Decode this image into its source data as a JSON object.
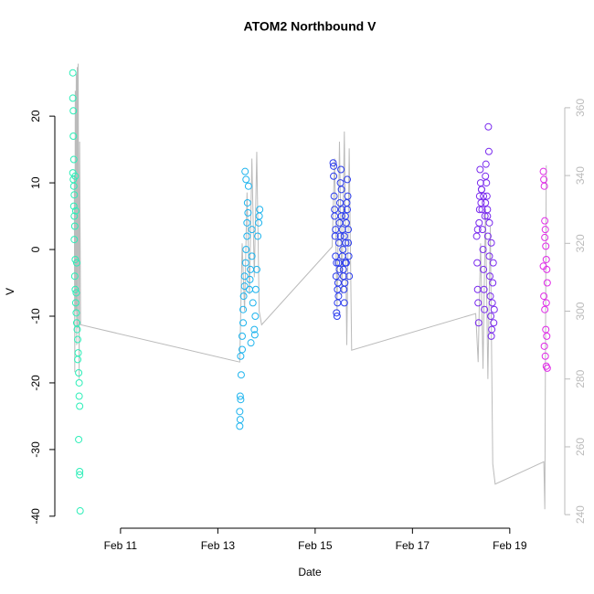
{
  "chart_data": {
    "type": "scatter",
    "title": "ATOM2 Northbound V",
    "x_label": "Date",
    "y_label": "V",
    "xlim": [
      9.65,
      20.13
    ],
    "xticks": [
      {
        "value": 11,
        "label": "Feb 11"
      },
      {
        "value": 13,
        "label": "Feb 13"
      },
      {
        "value": 15,
        "label": "Feb 15"
      },
      {
        "value": 17,
        "label": "Feb 17"
      },
      {
        "value": 19,
        "label": "Feb 19"
      }
    ],
    "ylim": [
      -41.8,
      29.2
    ],
    "yticks": [
      -40,
      -30,
      -20,
      -10,
      0,
      10,
      20
    ],
    "y2lim": [
      236,
      375.6
    ],
    "y2ticks": [
      240,
      260,
      280,
      300,
      320,
      340,
      360
    ],
    "series": [
      {
        "color": "#2CEEB8",
        "x": [
          10.02,
          10.02,
          10.03,
          10.03,
          10.04,
          10.02,
          10.03,
          10.04,
          10.05,
          10.04,
          10.05,
          10.06,
          10.05,
          10.07,
          10.06,
          10.07,
          10.08,
          10.09,
          10.1,
          10.11,
          10.12,
          10.13,
          10.12,
          10.14,
          10.15,
          10.15,
          10.16,
          10.14,
          10.16,
          10.16,
          10.17,
          10.07,
          10.08,
          10.09,
          10.1
        ],
        "values": [
          26.5,
          22.7,
          20.8,
          17,
          13.5,
          11.5,
          10.5,
          9.5,
          8.2,
          6.5,
          5,
          3.5,
          1.5,
          -1.5,
          -4,
          -6,
          -8,
          -9.5,
          -11,
          -12,
          -13.5,
          -15.5,
          -16.5,
          -18.5,
          -20,
          -22,
          -23.5,
          -28.5,
          -33.3,
          -33.8,
          -39.2,
          11,
          5.8,
          -6.5,
          -2
        ]
      },
      {
        "color": "#1EB4EE",
        "x": [
          13.45,
          13.46,
          13.45,
          13.47,
          13.46,
          13.48,
          13.47,
          13.5,
          13.5,
          13.52,
          13.52,
          13.53,
          13.55,
          13.55,
          13.57,
          13.58,
          13.6,
          13.6,
          13.62,
          13.61,
          13.63,
          13.56,
          13.58,
          13.65,
          13.67,
          13.7,
          13.72,
          13.75,
          13.76,
          13.77,
          13.78,
          13.8,
          13.82,
          13.84,
          13.86,
          13.85,
          13.7,
          13.68,
          13.66
        ],
        "values": [
          -26.5,
          -25.5,
          -24.3,
          -22.5,
          -22,
          -18.8,
          -16,
          -15,
          -13,
          -11,
          -9,
          -7,
          -5.5,
          -4,
          -2,
          0,
          2,
          4,
          5.5,
          7,
          9.5,
          11.7,
          10.5,
          -6,
          -3,
          -1,
          -8,
          -12,
          -12.8,
          -10,
          -6,
          -3,
          2,
          4,
          6,
          5,
          3,
          -14,
          -4.5
        ]
      },
      {
        "color": "#2B3CEE",
        "x": [
          15.37,
          15.38,
          15.39,
          15.4,
          15.41,
          15.42,
          15.43,
          15.44,
          15.45,
          15.46,
          15.47,
          15.48,
          15.49,
          15.5,
          15.51,
          15.52,
          15.53,
          15.54,
          15.55,
          15.56,
          15.57,
          15.58,
          15.59,
          15.6,
          15.61,
          15.62,
          15.63,
          15.64,
          15.65,
          15.66,
          15.67,
          15.68,
          15.69,
          15.7,
          15.38,
          15.4,
          15.42,
          15.44,
          15.46,
          15.48,
          15.5,
          15.52,
          15.54,
          15.56,
          15.58,
          15.6,
          15.62,
          15.64,
          15.66,
          15.68
        ],
        "values": [
          13,
          12.5,
          8,
          5,
          2,
          -1,
          -4,
          -9.5,
          -10,
          -8,
          -5,
          -2,
          1,
          4,
          7,
          10,
          12,
          9,
          6,
          3,
          0,
          -3,
          -6,
          -8,
          -5,
          -2,
          1,
          4,
          7,
          10.5,
          8,
          3,
          -1,
          -4,
          11,
          6,
          3,
          -2,
          -6,
          -7,
          -3,
          2,
          5,
          -1,
          -4,
          2,
          5,
          -2,
          6,
          1
        ]
      },
      {
        "color": "#7A2BEE",
        "x": [
          18.32,
          18.33,
          18.34,
          18.35,
          18.36,
          18.37,
          18.38,
          18.39,
          18.4,
          18.41,
          18.42,
          18.43,
          18.44,
          18.45,
          18.46,
          18.47,
          18.48,
          18.49,
          18.5,
          18.51,
          18.52,
          18.53,
          18.54,
          18.55,
          18.56,
          18.57,
          18.58,
          18.59,
          18.6,
          18.61,
          18.62,
          18.63,
          18.64,
          18.65,
          18.66,
          18.67,
          18.68,
          18.34,
          18.38,
          18.42,
          18.46,
          18.5,
          18.54,
          18.58,
          18.62
        ],
        "values": [
          2,
          -2,
          -6,
          -8,
          -11,
          4,
          8,
          12,
          10,
          7,
          9,
          6,
          3,
          0,
          -3,
          -6,
          -9,
          5,
          11,
          12.8,
          10,
          8,
          5,
          2,
          18.4,
          14.7,
          -1,
          -4,
          -7,
          -10,
          -13,
          -12,
          -8,
          -5,
          -2,
          -11,
          -9,
          3,
          6,
          9,
          8,
          7,
          6,
          4,
          1
        ]
      },
      {
        "color": "#E02BE8",
        "x": [
          19.69,
          19.7,
          19.71,
          19.72,
          19.73,
          19.74,
          19.75,
          19.76,
          19.77,
          19.7,
          19.72,
          19.74,
          19.76,
          19.71,
          19.73,
          19.75,
          19.77,
          19.69,
          19.72,
          19.75
        ],
        "values": [
          11.7,
          10.5,
          9.5,
          4.3,
          3,
          0.5,
          -1.5,
          -3,
          -5,
          -7,
          -9,
          -12,
          -13,
          -14.5,
          -16,
          -17.5,
          -17.8,
          -2.5,
          1.8,
          -8
        ]
      },
      {
        "type": "line",
        "axis": "y2",
        "color": "#bbbbbb",
        "x": [
          10.05,
          10.06,
          10.07,
          10.08,
          10.09,
          10.1,
          10.11,
          10.12,
          10.13,
          10.15,
          10.16,
          10.18,
          13.45,
          13.5,
          13.55,
          13.6,
          13.65,
          13.7,
          13.75,
          13.8,
          13.85,
          13.9,
          15.35,
          15.4,
          15.45,
          15.5,
          15.55,
          15.6,
          15.65,
          15.7,
          15.75,
          18.3,
          18.35,
          18.4,
          18.45,
          18.5,
          18.55,
          18.6,
          18.65,
          18.7,
          19.7,
          19.72,
          19.75
        ],
        "values": [
          340,
          282,
          365,
          300,
          370,
          290,
          372,
          295,
          373,
          280,
          350,
          296,
          285,
          320,
          300,
          335,
          305,
          345,
          310,
          347,
          300,
          296,
          319,
          345,
          300,
          350,
          305,
          353,
          290,
          348,
          288.5,
          299.3,
          285,
          320,
          283,
          330,
          280,
          325,
          255,
          249,
          255.6,
          241.6,
          343
        ]
      }
    ]
  }
}
